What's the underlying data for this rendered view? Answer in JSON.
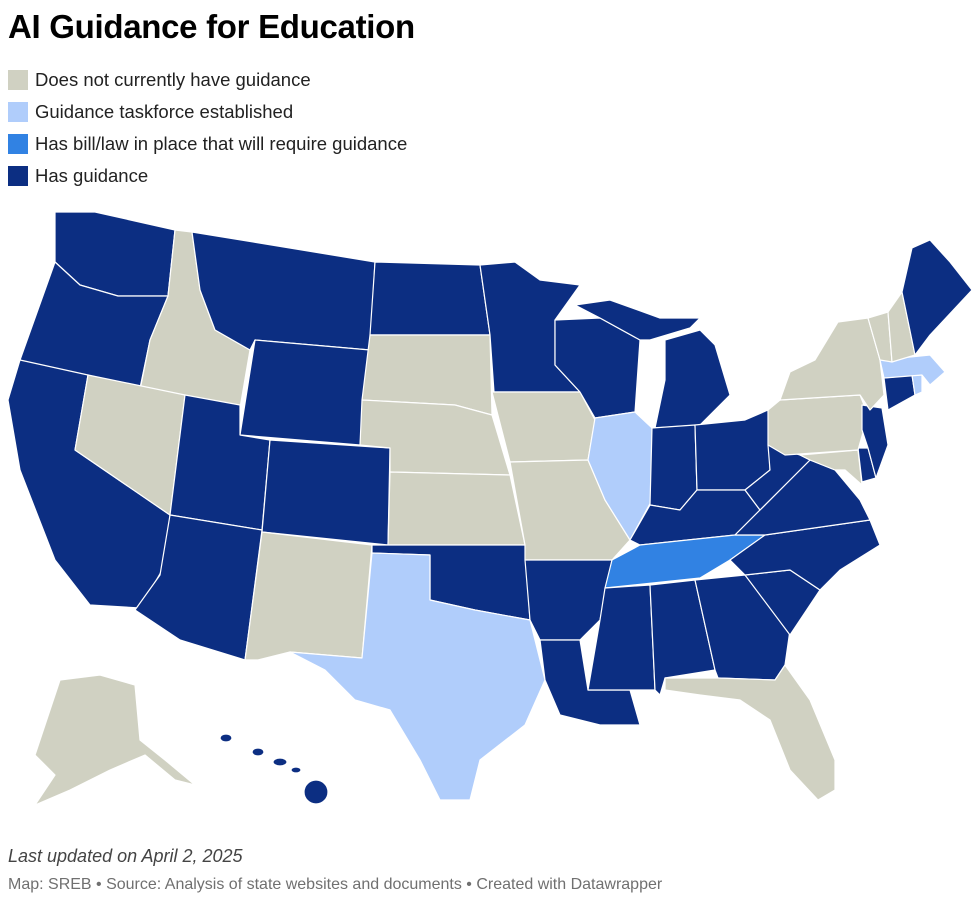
{
  "title": "AI Guidance for Education",
  "colors": {
    "none": "#d0d1c2",
    "taskforce": "#b0cdfb",
    "bill": "#3182e3",
    "has": "#0c2e82"
  },
  "legend": [
    {
      "key": "none",
      "label": "Does not currently have guidance"
    },
    {
      "key": "taskforce",
      "label": "Guidance taskforce established"
    },
    {
      "key": "bill",
      "label": "Has bill/law in place that will require guidance"
    },
    {
      "key": "has",
      "label": "Has guidance"
    }
  ],
  "states": {
    "WA": "has",
    "OR": "has",
    "CA": "has",
    "ID": "none",
    "NV": "none",
    "MT": "has",
    "WY": "has",
    "UT": "has",
    "AZ": "has",
    "CO": "has",
    "NM": "none",
    "ND": "has",
    "SD": "none",
    "NE": "none",
    "KS": "none",
    "OK": "has",
    "TX": "taskforce",
    "MN": "has",
    "IA": "none",
    "MO": "none",
    "AR": "has",
    "LA": "has",
    "WI": "has",
    "IL": "taskforce",
    "MI": "has",
    "IN": "has",
    "OH": "has",
    "KY": "has",
    "TN": "bill",
    "MS": "has",
    "AL": "has",
    "GA": "has",
    "FL": "none",
    "SC": "has",
    "NC": "has",
    "VA": "has",
    "WV": "has",
    "MD": "none",
    "DE": "has",
    "PA": "none",
    "NJ": "has",
    "NY": "none",
    "CT": "has",
    "RI": "taskforce",
    "MA": "taskforce",
    "VT": "none",
    "NH": "none",
    "ME": "has",
    "AK": "none",
    "HI": "has"
  },
  "footer": {
    "updated": "Last updated on April 2, 2025",
    "credits": "Map: SREB • Source: Analysis of state websites and documents • Created with Datawrapper"
  }
}
